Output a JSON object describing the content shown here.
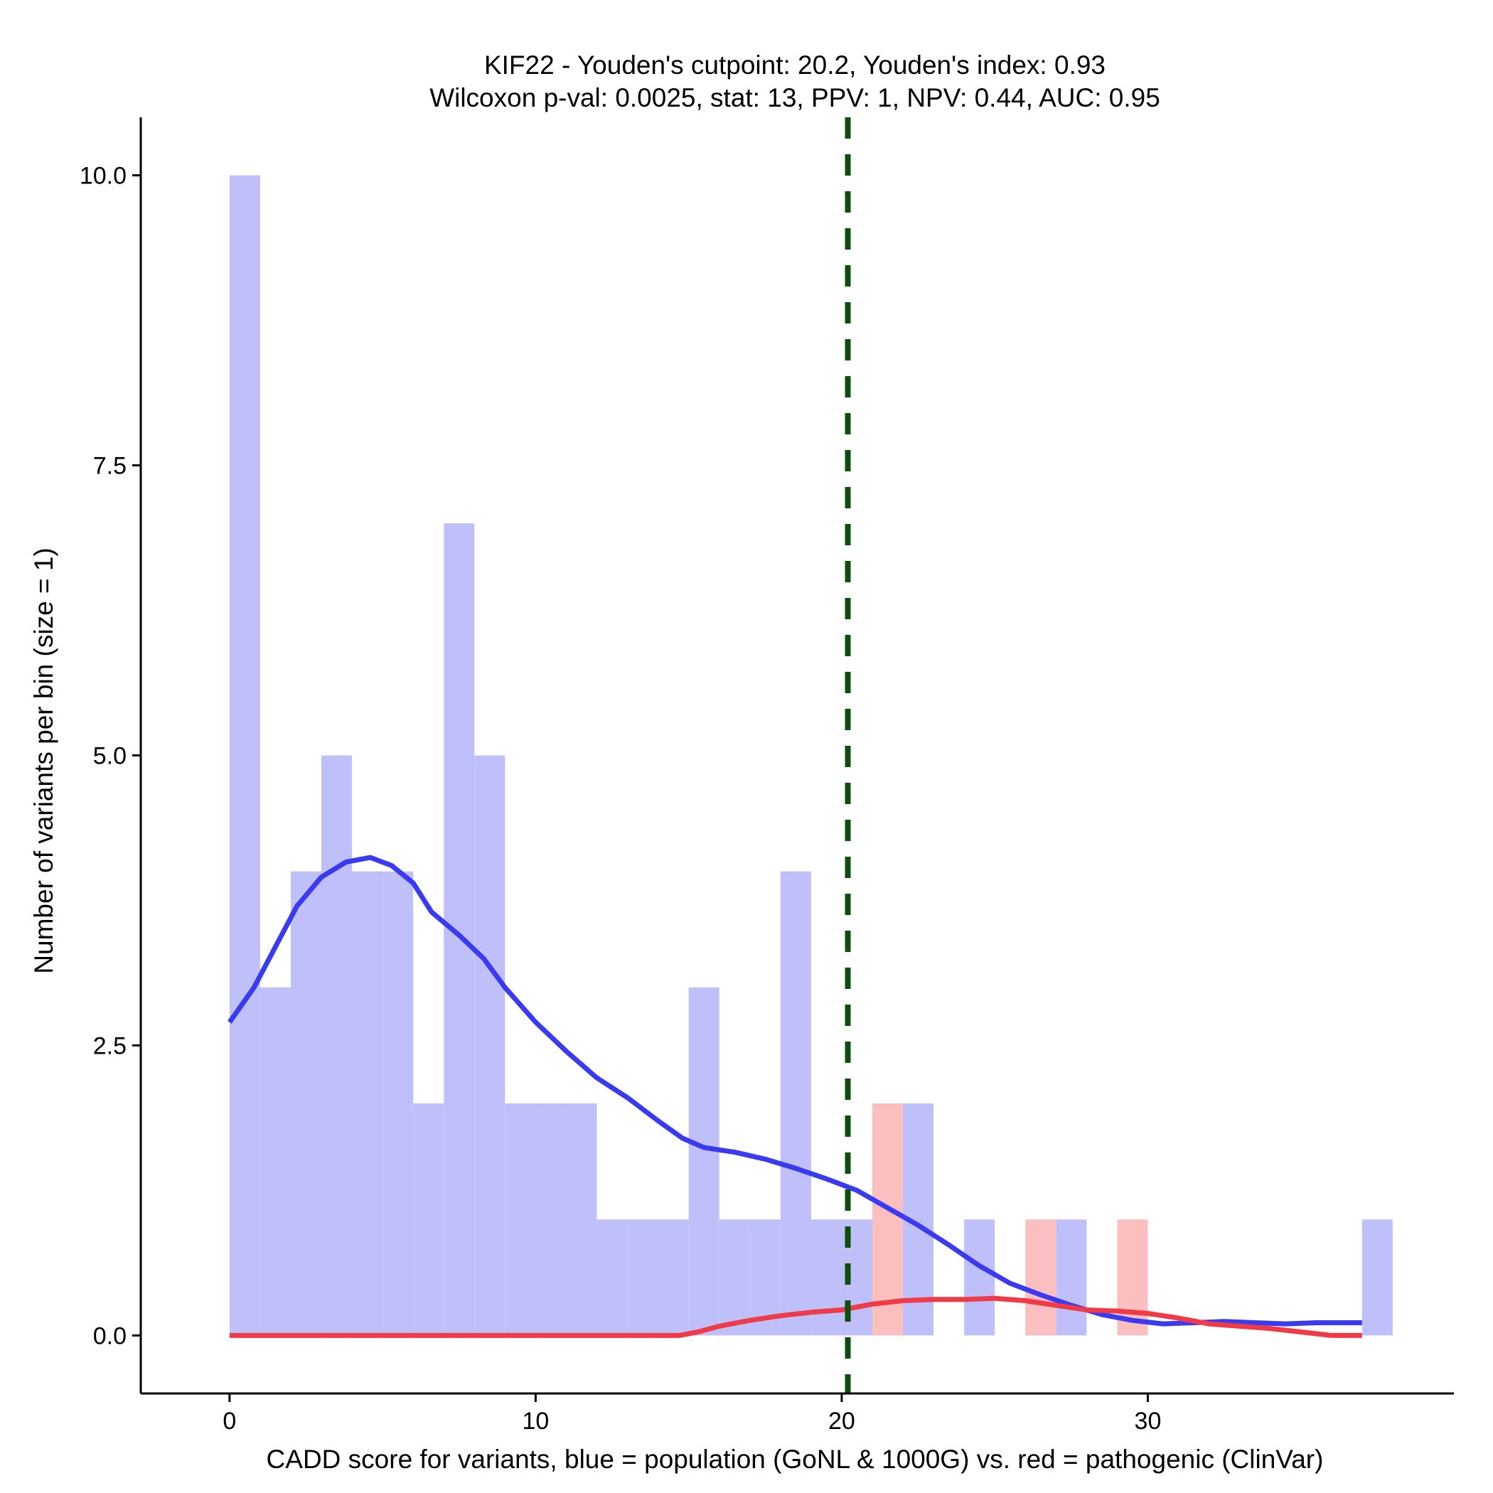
{
  "chart_data": {
    "type": "bar",
    "title_line1": "KIF22 - Youden's cutpoint: 20.2, Youden's index: 0.93",
    "title_line2": "Wilcoxon p-val: 0.0025, stat: 13, PPV: 1, NPV: 0.44, AUC: 0.95",
    "xlabel": "CADD score for variants, blue = population (GoNL & 1000G) vs. red = pathogenic (ClinVar)",
    "ylabel": "Number of variants per bin (size = 1)",
    "xlim": [
      -2.9,
      40
    ],
    "ylim": [
      -0.5,
      10.5
    ],
    "x_ticks": [
      0,
      10,
      20,
      30
    ],
    "x_tick_labels": [
      "0",
      "10",
      "20",
      "30"
    ],
    "y_ticks": [
      0,
      2.5,
      5,
      7.5,
      10
    ],
    "y_tick_labels": [
      "0.0",
      "2.5",
      "5.0",
      "7.5",
      "10.0"
    ],
    "bin_width": 1,
    "cutpoint": 20.2,
    "series": [
      {
        "name": "population (GoNL & 1000G)",
        "color": "#bfbff9",
        "bins": [
          {
            "start": 0,
            "count": 10
          },
          {
            "start": 1,
            "count": 3
          },
          {
            "start": 2,
            "count": 4
          },
          {
            "start": 3,
            "count": 5
          },
          {
            "start": 4,
            "count": 4
          },
          {
            "start": 5,
            "count": 4
          },
          {
            "start": 6,
            "count": 2
          },
          {
            "start": 7,
            "count": 7
          },
          {
            "start": 8,
            "count": 5
          },
          {
            "start": 9,
            "count": 2
          },
          {
            "start": 10,
            "count": 2
          },
          {
            "start": 11,
            "count": 2
          },
          {
            "start": 12,
            "count": 1
          },
          {
            "start": 13,
            "count": 1
          },
          {
            "start": 14,
            "count": 1
          },
          {
            "start": 15,
            "count": 3
          },
          {
            "start": 16,
            "count": 1
          },
          {
            "start": 17,
            "count": 1
          },
          {
            "start": 18,
            "count": 4
          },
          {
            "start": 19,
            "count": 1
          },
          {
            "start": 20,
            "count": 1
          },
          {
            "start": 22,
            "count": 2
          },
          {
            "start": 24,
            "count": 1
          },
          {
            "start": 27,
            "count": 1
          },
          {
            "start": 37,
            "count": 1
          }
        ]
      },
      {
        "name": "pathogenic (ClinVar)",
        "color": "#fcbfbf",
        "bins": [
          {
            "start": 21,
            "count": 2
          },
          {
            "start": 26,
            "count": 1
          },
          {
            "start": 29,
            "count": 1
          }
        ]
      }
    ],
    "density_lines": [
      {
        "name": "population density",
        "color": "#3a3af0",
        "points": [
          [
            0,
            2.7
          ],
          [
            0.8,
            3.0
          ],
          [
            1.5,
            3.35
          ],
          [
            2.2,
            3.7
          ],
          [
            3.0,
            3.95
          ],
          [
            3.8,
            4.08
          ],
          [
            4.6,
            4.12
          ],
          [
            5.3,
            4.05
          ],
          [
            6.0,
            3.9
          ],
          [
            6.6,
            3.65
          ],
          [
            7.5,
            3.45
          ],
          [
            8.3,
            3.25
          ],
          [
            9.0,
            3.0
          ],
          [
            10.0,
            2.7
          ],
          [
            11.0,
            2.45
          ],
          [
            12.0,
            2.22
          ],
          [
            13.0,
            2.05
          ],
          [
            14.0,
            1.85
          ],
          [
            14.8,
            1.7
          ],
          [
            15.5,
            1.62
          ],
          [
            16.5,
            1.58
          ],
          [
            17.5,
            1.52
          ],
          [
            18.5,
            1.44
          ],
          [
            19.5,
            1.35
          ],
          [
            20.5,
            1.25
          ],
          [
            21.5,
            1.1
          ],
          [
            22.5,
            0.95
          ],
          [
            23.5,
            0.78
          ],
          [
            24.5,
            0.6
          ],
          [
            25.5,
            0.45
          ],
          [
            26.5,
            0.35
          ],
          [
            27.5,
            0.26
          ],
          [
            28.5,
            0.18
          ],
          [
            29.5,
            0.13
          ],
          [
            30.5,
            0.1
          ],
          [
            31.5,
            0.11
          ],
          [
            32.5,
            0.12
          ],
          [
            33.5,
            0.11
          ],
          [
            34.5,
            0.1
          ],
          [
            35.5,
            0.11
          ],
          [
            37,
            0.11
          ]
        ]
      },
      {
        "name": "pathogenic density",
        "color": "#f03a48",
        "points": [
          [
            0,
            0.0
          ],
          [
            14.7,
            0.0
          ],
          [
            15.3,
            0.03
          ],
          [
            16.0,
            0.08
          ],
          [
            17.0,
            0.13
          ],
          [
            18.0,
            0.17
          ],
          [
            19.0,
            0.2
          ],
          [
            20.0,
            0.22
          ],
          [
            21.0,
            0.27
          ],
          [
            22.0,
            0.3
          ],
          [
            23.0,
            0.31
          ],
          [
            24.0,
            0.31
          ],
          [
            25.0,
            0.32
          ],
          [
            26.0,
            0.3
          ],
          [
            27.0,
            0.26
          ],
          [
            28.0,
            0.22
          ],
          [
            29.0,
            0.21
          ],
          [
            30.0,
            0.19
          ],
          [
            31.0,
            0.15
          ],
          [
            32.0,
            0.1
          ],
          [
            33.0,
            0.08
          ],
          [
            34.0,
            0.06
          ],
          [
            35.0,
            0.03
          ],
          [
            36.0,
            0.0
          ],
          [
            37,
            0.0
          ]
        ]
      }
    ],
    "cutpoint_color": "#0d4d0d"
  }
}
